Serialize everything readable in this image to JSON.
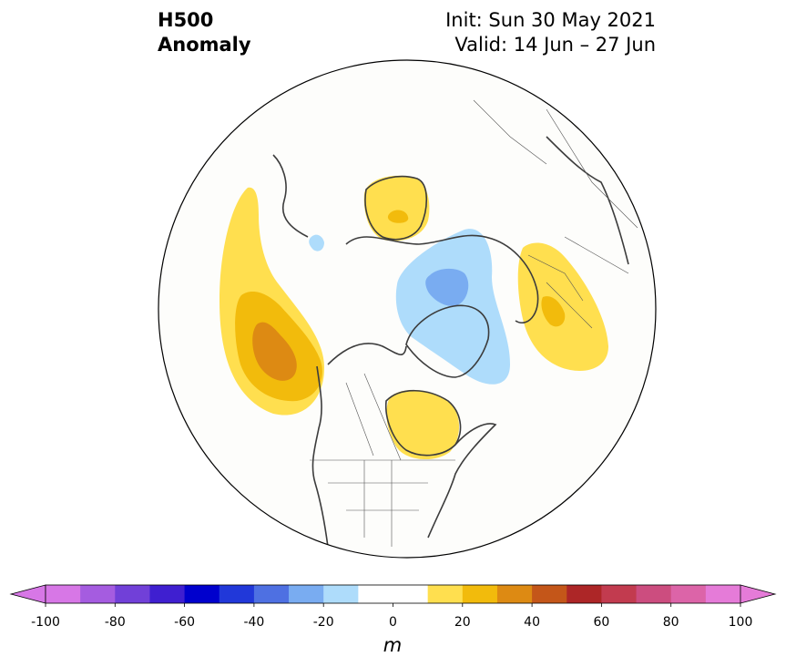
{
  "title": {
    "left_line1": "H500",
    "left_line2": "Anomaly",
    "init": "Init: Sun 30 May 2021",
    "valid": "Valid: 14 Jun – 27 Jun"
  },
  "colorbar": {
    "ticks": [
      "-100",
      "-80",
      "-60",
      "-40",
      "-20",
      "0",
      "20",
      "40",
      "60",
      "80",
      "100"
    ],
    "unit": "m",
    "bins": [
      -100,
      -90,
      -80,
      -70,
      -60,
      -50,
      -40,
      -30,
      -20,
      -10,
      10,
      20,
      30,
      40,
      50,
      60,
      70,
      80,
      90,
      100
    ],
    "colors": [
      "#d777e6",
      "#a55ce0",
      "#7140d8",
      "#3f1fd0",
      "#0000cd",
      "#2138d9",
      "#4e70e2",
      "#79acf1",
      "#aedcfb",
      "#ffffff",
      "#ffdf4f",
      "#f2bb0c",
      "#dd8a13",
      "#c45619",
      "#ad2627",
      "#c23b4f",
      "#cc4d7f",
      "#dc64a8",
      "#e57bd8",
      "#e57bd8"
    ],
    "under_color": "#d777e6",
    "over_color": "#e57bd8"
  },
  "map": {
    "projection": "north-polar-stereographic",
    "anomalies": [
      {
        "region": "North Pacific / Gulf of Alaska",
        "sign": "positive",
        "peak_m": 40
      },
      {
        "region": "Scandinavia / Barents",
        "sign": "positive",
        "peak_m": 30
      },
      {
        "region": "Central Canada / Hudson Bay",
        "sign": "positive",
        "peak_m": 20
      },
      {
        "region": "Western Russia / Eastern Europe",
        "sign": "positive",
        "peak_m": 30
      },
      {
        "region": "Greenland / Arctic Ocean",
        "sign": "negative",
        "peak_m": -30
      },
      {
        "region": "Beaufort Sea",
        "sign": "negative",
        "peak_m": -20
      }
    ]
  }
}
